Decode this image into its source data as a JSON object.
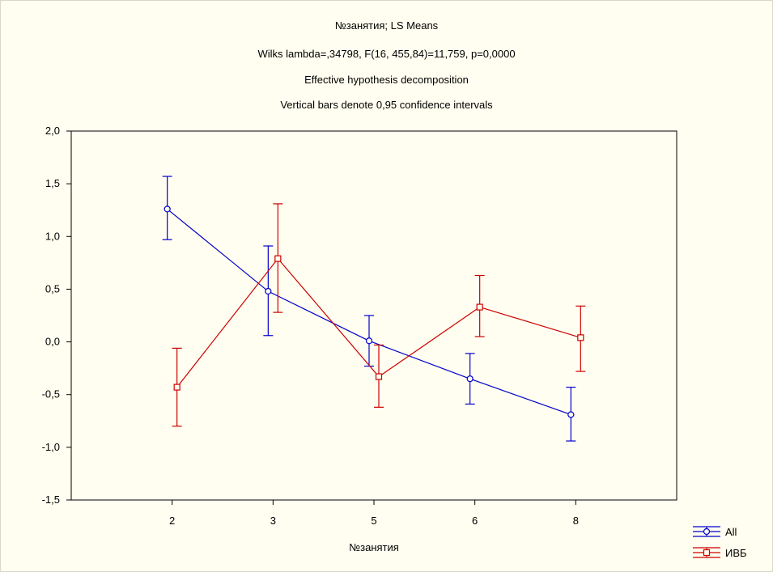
{
  "chart_data": {
    "type": "line",
    "title_lines": [
      "№занятия; LS Means",
      "Wilks lambda=,34798, F(16, 455,84)=11,759, p=0,0000",
      "Effective hypothesis decomposition",
      "Vertical bars denote 0,95 confidence intervals"
    ],
    "xlabel": "№занятия",
    "ylabel": "",
    "categories": [
      "2",
      "3",
      "5",
      "6",
      "8"
    ],
    "ylim": [
      -1.5,
      2.0
    ],
    "yticks": [
      "2,0",
      "1,5",
      "1,0",
      "0,5",
      "0,0",
      "-0,5",
      "-1,0",
      "-1,5"
    ],
    "ytick_values": [
      2.0,
      1.5,
      1.0,
      0.5,
      0.0,
      -0.5,
      -1.0,
      -1.5
    ],
    "grid": false,
    "legend_position": "bottom-right",
    "series": [
      {
        "name": "All",
        "color": "#0000cc",
        "marker": "circle",
        "values": [
          1.26,
          0.48,
          0.01,
          -0.35,
          -0.69
        ],
        "ci_low": [
          0.97,
          0.06,
          -0.23,
          -0.59,
          -0.94
        ],
        "ci_high": [
          1.57,
          0.91,
          0.25,
          -0.11,
          -0.43
        ]
      },
      {
        "name": "ИВБ",
        "color": "#cc0000",
        "marker": "square",
        "values": [
          -0.43,
          0.79,
          -0.33,
          0.33,
          0.04
        ],
        "ci_low": [
          -0.8,
          0.28,
          -0.62,
          0.05,
          -0.28
        ],
        "ci_high": [
          -0.06,
          1.31,
          -0.03,
          0.63,
          0.34
        ]
      }
    ]
  }
}
